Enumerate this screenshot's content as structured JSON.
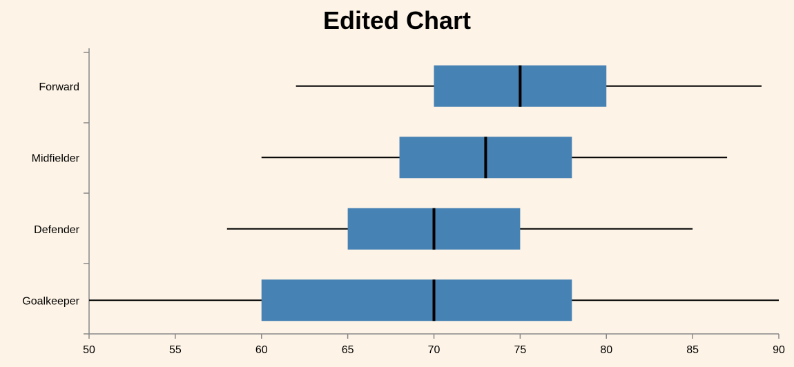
{
  "chart_data": {
    "type": "boxplot",
    "title": "Edited Chart",
    "orientation": "horizontal",
    "xlabel": "",
    "ylabel": "",
    "xlim": [
      50,
      90
    ],
    "x_ticks": [
      50,
      55,
      60,
      65,
      70,
      75,
      80,
      85,
      90
    ],
    "categories": [
      "Forward",
      "Midfielder",
      "Defender",
      "Goalkeeper"
    ],
    "boxes": [
      {
        "category": "Forward",
        "min": 62,
        "q1": 70,
        "median": 75,
        "q3": 80,
        "max": 89
      },
      {
        "category": "Midfielder",
        "min": 60,
        "q1": 68,
        "median": 73,
        "q3": 78,
        "max": 87
      },
      {
        "category": "Defender",
        "min": 58,
        "q1": 65,
        "median": 70,
        "q3": 75,
        "max": 85
      },
      {
        "category": "Goalkeeper",
        "min": 50,
        "q1": 60,
        "median": 70,
        "q3": 78,
        "max": 90
      }
    ],
    "colors": {
      "box": "#4682b4",
      "line": "#000000",
      "axis": "#888888",
      "background": "#fdf3e6"
    },
    "grid": false,
    "legend": "none"
  }
}
